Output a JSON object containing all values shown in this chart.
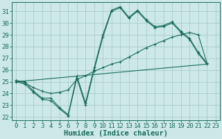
{
  "bg_color": "#cce8e8",
  "grid_color": "#aacccc",
  "line_color": "#1a6b5a",
  "xlabel": "Humidex (Indice chaleur)",
  "xlim": [
    -0.5,
    23.5
  ],
  "ylim": [
    21.7,
    31.8
  ],
  "xticks": [
    0,
    1,
    2,
    3,
    4,
    5,
    6,
    7,
    8,
    9,
    10,
    11,
    12,
    13,
    14,
    15,
    16,
    17,
    18,
    19,
    20,
    21,
    22,
    23
  ],
  "yticks": [
    22,
    23,
    24,
    25,
    26,
    27,
    28,
    29,
    30,
    31
  ],
  "line1_x": [
    0,
    1,
    2,
    3,
    4,
    5,
    6,
    7,
    8,
    9,
    10,
    11,
    12,
    13,
    14,
    15,
    16,
    17,
    18,
    19,
    20,
    21,
    22
  ],
  "line1_y": [
    25.1,
    25.0,
    24.2,
    23.6,
    23.6,
    22.8,
    22.2,
    25.5,
    23.2,
    26.2,
    29.0,
    31.1,
    31.4,
    30.5,
    31.1,
    30.3,
    29.7,
    29.8,
    30.1,
    29.3,
    28.7,
    27.5,
    26.6
  ],
  "line2_x": [
    0,
    1,
    2,
    3,
    4,
    5,
    6,
    7,
    8,
    9,
    10,
    11,
    12,
    13,
    14,
    15,
    16,
    17,
    18,
    19,
    20,
    21,
    22
  ],
  "line2_y": [
    25.0,
    24.8,
    24.1,
    23.5,
    23.4,
    22.7,
    22.1,
    25.3,
    23.0,
    26.0,
    28.8,
    31.0,
    31.3,
    30.4,
    31.0,
    30.2,
    29.6,
    29.7,
    30.0,
    29.2,
    28.6,
    27.4,
    26.5
  ],
  "line3_x": [
    0,
    1,
    2,
    3,
    4,
    5,
    6,
    7,
    8,
    9,
    10,
    11,
    12,
    13,
    14,
    15,
    16,
    17,
    18,
    19,
    20,
    21,
    22
  ],
  "line3_y": [
    25.1,
    24.9,
    24.5,
    24.2,
    24.0,
    24.1,
    24.3,
    25.2,
    25.5,
    25.9,
    26.2,
    26.5,
    26.7,
    27.1,
    27.5,
    27.9,
    28.2,
    28.5,
    28.8,
    29.0,
    29.2,
    29.0,
    26.6
  ],
  "line4_x": [
    0,
    22
  ],
  "line4_y": [
    25.0,
    26.5
  ],
  "font_size_ticks": 6.5,
  "font_size_label": 7.5
}
